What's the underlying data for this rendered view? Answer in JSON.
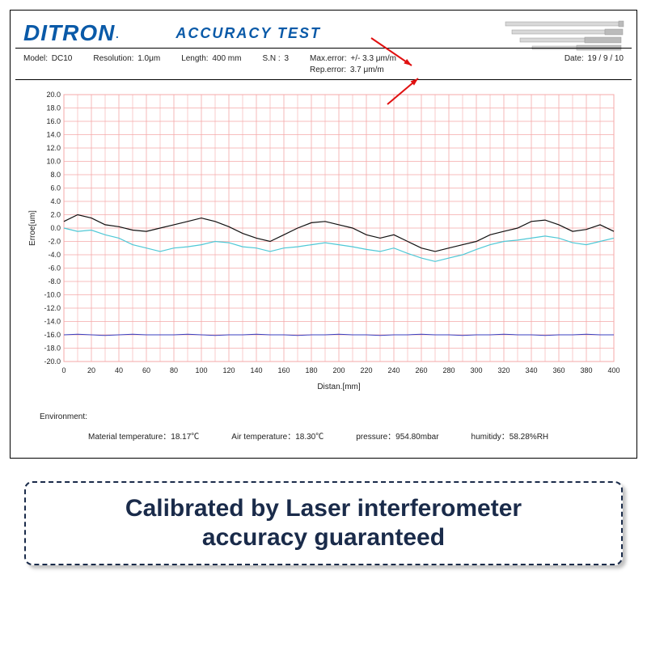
{
  "header": {
    "brand": "DITRON",
    "title": "ACCURACY TEST"
  },
  "meta": {
    "model_label": "Model:",
    "model": "DC10",
    "resolution_label": "Resolution:",
    "resolution": "1.0μm",
    "length_label": "Length:",
    "length": "400   mm",
    "sn_label": "S.N :",
    "sn": "3",
    "max_error_label": "Max.error:",
    "max_error": "+/- 3.3 μm/m",
    "rep_error_label": "Rep.error:",
    "rep_error": "3.7 μm/m",
    "date_label": "Date:",
    "date": "19 / 9   / 10"
  },
  "chart": {
    "type": "line",
    "ylabel": "Erroe[um]",
    "xlabel": "Distan.[mm]",
    "ylim": [
      -20,
      20
    ],
    "ytick_step": 2,
    "xlim": [
      0,
      400
    ],
    "xtick_step": 20,
    "grid_color": "#f4a8a8",
    "border_color": "#f4a8a8",
    "background_color": "#ffffff",
    "axis_label_color": "#222222",
    "tick_fontsize": 9,
    "label_fontsize": 10,
    "series": [
      {
        "name": "line1",
        "color": "#111111",
        "width": 1.2,
        "y": [
          1.0,
          2.0,
          1.5,
          0.5,
          0.2,
          -0.3,
          -0.5,
          0.0,
          0.5,
          1.0,
          1.5,
          1.0,
          0.2,
          -0.8,
          -1.5,
          -2.0,
          -1.0,
          0.0,
          0.8,
          1.0,
          0.5,
          0.0,
          -1.0,
          -1.5,
          -1.0,
          -2.0,
          -3.0,
          -3.5,
          -3.0,
          -2.5,
          -2.0,
          -1.0,
          -0.5,
          0.0,
          1.0,
          1.2,
          0.5,
          -0.5,
          -0.2,
          0.5,
          -0.5
        ]
      },
      {
        "name": "line2",
        "color": "#4fc8d6",
        "width": 1.2,
        "y": [
          0.0,
          -0.5,
          -0.3,
          -1.0,
          -1.5,
          -2.5,
          -3.0,
          -3.5,
          -3.0,
          -2.8,
          -2.5,
          -2.0,
          -2.2,
          -2.8,
          -3.0,
          -3.5,
          -3.0,
          -2.8,
          -2.5,
          -2.2,
          -2.5,
          -2.8,
          -3.2,
          -3.5,
          -3.0,
          -3.8,
          -4.5,
          -5.0,
          -4.5,
          -4.0,
          -3.2,
          -2.5,
          -2.0,
          -1.8,
          -1.5,
          -1.2,
          -1.5,
          -2.2,
          -2.5,
          -2.0,
          -1.5
        ]
      },
      {
        "name": "line3",
        "color": "#3a3fbf",
        "width": 1.0,
        "y": [
          -16.0,
          -15.9,
          -16.0,
          -16.1,
          -16.0,
          -15.9,
          -16.0,
          -16.0,
          -16.0,
          -15.9,
          -16.0,
          -16.1,
          -16.0,
          -16.0,
          -15.9,
          -16.0,
          -16.0,
          -16.1,
          -16.0,
          -16.0,
          -15.9,
          -16.0,
          -16.0,
          -16.1,
          -16.0,
          -16.0,
          -15.9,
          -16.0,
          -16.0,
          -16.1,
          -16.0,
          -16.0,
          -15.9,
          -16.0,
          -16.0,
          -16.1,
          -16.0,
          -16.0,
          -15.9,
          -16.0,
          -16.0
        ]
      }
    ]
  },
  "env": {
    "header": "Environment:",
    "mat_temp_label": "Material temperature：",
    "mat_temp": "18.17℃",
    "air_temp_label": "Air temperature：",
    "air_temp": "18.30℃",
    "pressure_label": "pressure：",
    "pressure": "954.80mbar",
    "humidity_label": "humitidy：",
    "humidity": "58.28%RH"
  },
  "callout": {
    "line1": "Calibrated by Laser interferometer",
    "line2": "accuracy guaranteed"
  },
  "arrows": {
    "color": "#e01010"
  }
}
